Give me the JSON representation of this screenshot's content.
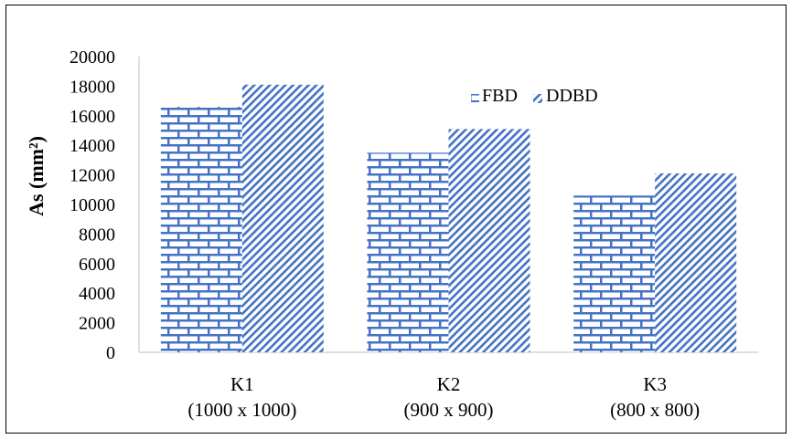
{
  "chart_data": {
    "type": "bar",
    "title": "",
    "xlabel": "",
    "ylabel": "As (mm²)",
    "ylim": [
      0,
      20000
    ],
    "yticks": [
      0,
      2000,
      4000,
      6000,
      8000,
      10000,
      12000,
      14000,
      16000,
      18000,
      20000
    ],
    "grid": false,
    "legend_position": "top-right",
    "categories": [
      {
        "name": "K1",
        "sub": "(1000 x 1000)"
      },
      {
        "name": "K2",
        "sub": "(900 x 900)"
      },
      {
        "name": "K3",
        "sub": "(800 x 800)"
      }
    ],
    "series": [
      {
        "name": "FBD",
        "pattern": "brick",
        "color": "#4472C4",
        "values": [
          16600,
          13500,
          10600
        ]
      },
      {
        "name": "DDBD",
        "pattern": "diagonal",
        "color": "#4472C4",
        "values": [
          18100,
          15100,
          12100
        ]
      }
    ]
  }
}
